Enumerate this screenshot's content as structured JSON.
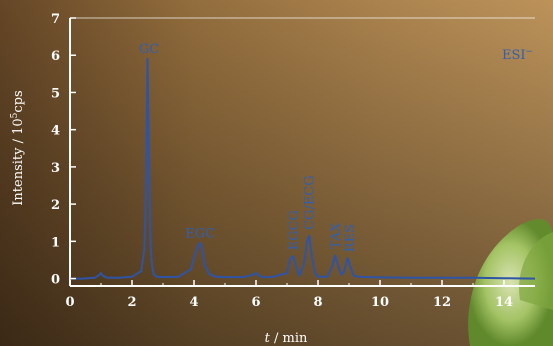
{
  "chart_data": {
    "type": "line",
    "xlabel_italic": "t",
    "xlabel_unit": "/ min",
    "ylabel_main": "Intensity / 10",
    "ylabel_exp": "5",
    "ylabel_unit": "cps",
    "mode_label": "ESI",
    "mode_sup": "−",
    "xlim": [
      0,
      15
    ],
    "ylim": [
      -0.2,
      7
    ],
    "xticks": [
      0,
      2,
      4,
      6,
      8,
      10,
      12,
      14
    ],
    "yticks": [
      0,
      1,
      2,
      3,
      4,
      5,
      6,
      7
    ],
    "series": [
      {
        "x": [
          0,
          0.4,
          0.8,
          0.95,
          1.0,
          1.05,
          1.2,
          1.6,
          2.0,
          2.3,
          2.4,
          2.45,
          2.5,
          2.55,
          2.6,
          2.65,
          2.7,
          2.8,
          3.0,
          3.5,
          3.9,
          4.05,
          4.15,
          4.2,
          4.25,
          4.35,
          4.5,
          4.7,
          5.0,
          5.6,
          5.9,
          6.0,
          6.1,
          6.2,
          6.5,
          7.0,
          7.1,
          7.2,
          7.3,
          7.4,
          7.55,
          7.65,
          7.72,
          7.8,
          7.9,
          8.0,
          8.3,
          8.45,
          8.55,
          8.65,
          8.75,
          8.85,
          8.95,
          9.05,
          9.15,
          9.3,
          9.6,
          10,
          11,
          12,
          13,
          14,
          15
        ],
        "y": [
          0,
          0,
          0.02,
          0.1,
          0.15,
          0.08,
          0.02,
          0.02,
          0.05,
          0.2,
          0.8,
          2.5,
          5.9,
          2.8,
          0.9,
          0.3,
          0.12,
          0.05,
          0.04,
          0.05,
          0.25,
          0.7,
          0.92,
          0.95,
          0.82,
          0.35,
          0.12,
          0.05,
          0.04,
          0.04,
          0.1,
          0.15,
          0.08,
          0.04,
          0.04,
          0.15,
          0.52,
          0.6,
          0.3,
          0.08,
          0.4,
          1.0,
          1.15,
          0.6,
          0.15,
          0.05,
          0.05,
          0.3,
          0.62,
          0.35,
          0.1,
          0.2,
          0.55,
          0.3,
          0.08,
          0.05,
          0.04,
          0.03,
          0.02,
          0.02,
          0.02,
          0.01,
          0
        ]
      }
    ],
    "annotations": [
      {
        "text": "GC",
        "x": 2.55,
        "y": 5.95,
        "rotate": false
      },
      {
        "text": "EGC",
        "x": 4.2,
        "y": 1.0,
        "rotate": false
      },
      {
        "text": "EGCG",
        "x": 7.2,
        "y": 0.65,
        "rotate": true
      },
      {
        "text": "CG/ECG",
        "x": 7.7,
        "y": 1.2,
        "rotate": true
      },
      {
        "text": "TAX",
        "x": 8.55,
        "y": 0.68,
        "rotate": true
      },
      {
        "text": "RES",
        "x": 9.0,
        "y": 0.6,
        "rotate": true
      }
    ],
    "line_color": "#2e54a8",
    "axis_color": "#ffffff"
  }
}
